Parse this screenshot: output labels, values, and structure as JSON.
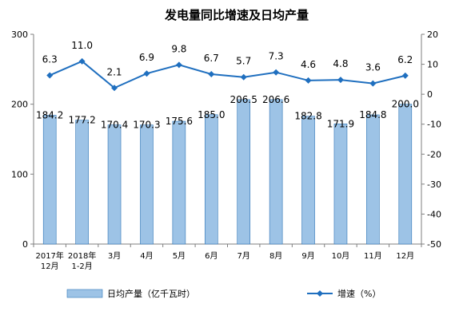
{
  "chart_data": {
    "type": "bar+line",
    "title": "发电量同比增速及日均产量",
    "categories": [
      [
        "2017年",
        "12月"
      ],
      [
        "2018年",
        "1-2月"
      ],
      [
        "3月"
      ],
      [
        "4月"
      ],
      [
        "5月"
      ],
      [
        "6月"
      ],
      [
        "7月"
      ],
      [
        "8月"
      ],
      [
        "9月"
      ],
      [
        "10月"
      ],
      [
        "11月"
      ],
      [
        "12月"
      ]
    ],
    "series": [
      {
        "name": "日均产量（亿千瓦时）",
        "kind": "bar",
        "axis": "left",
        "color": "#9dc3e6",
        "values": [
          184.2,
          177.2,
          170.4,
          170.3,
          175.6,
          185.0,
          206.5,
          206.6,
          182.8,
          171.9,
          184.8,
          200.0
        ],
        "labels": [
          "184.2",
          "177.2",
          "170.4",
          "170.3",
          "175.6",
          "185.0",
          "206.5",
          "206.6",
          "182.8",
          "171.9",
          "184.8",
          "200.0"
        ]
      },
      {
        "name": "增速（%）",
        "kind": "line",
        "axis": "right",
        "color": "#1f6fbf",
        "marker": "diamond",
        "values": [
          6.3,
          11.0,
          2.1,
          6.9,
          9.8,
          6.7,
          5.7,
          7.3,
          4.6,
          4.8,
          3.6,
          6.2
        ],
        "labels": [
          "6.3",
          "11.0",
          "2.1",
          "6.9",
          "9.8",
          "6.7",
          "5.7",
          "7.3",
          "4.6",
          "4.8",
          "3.6",
          "6.2"
        ]
      }
    ],
    "y_left": {
      "range": [
        0,
        300
      ],
      "ticks": [
        "0",
        "100",
        "200",
        "300"
      ]
    },
    "y_right": {
      "range": [
        -50,
        20
      ],
      "ticks": [
        "-50",
        "-40",
        "-30",
        "-20",
        "-10",
        "0",
        "10",
        "20"
      ]
    },
    "grid": false,
    "legend_position": "bottom"
  }
}
